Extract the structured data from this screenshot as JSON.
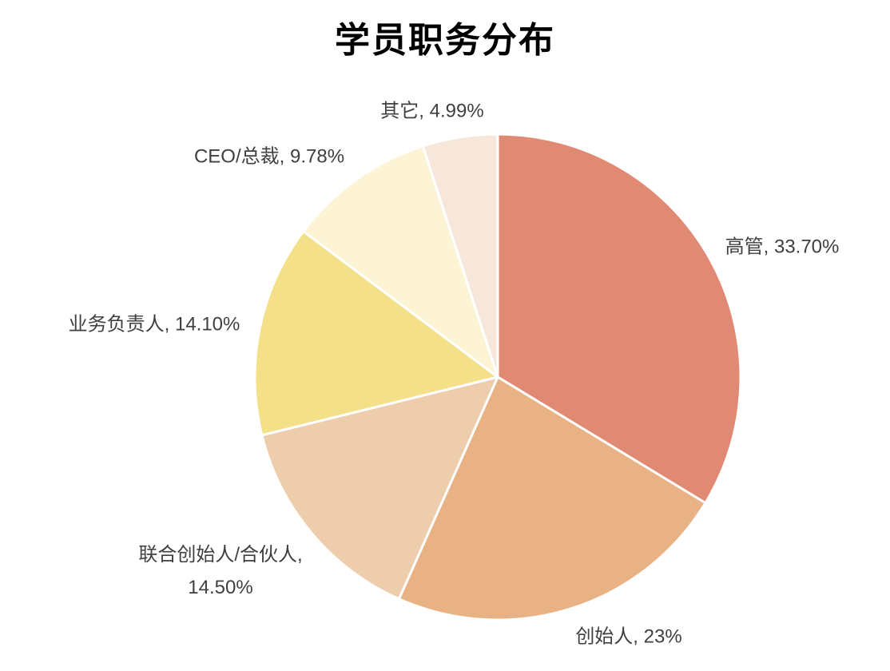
{
  "page": {
    "title": "学员职务分布"
  },
  "chart_data": {
    "type": "pie",
    "title": "学员职务分布",
    "categories": [
      "高管",
      "创始人",
      "联合创始人/合伙人",
      "业务负责人",
      "CEO/总裁",
      "其它"
    ],
    "values": [
      33.7,
      23,
      14.5,
      14.1,
      9.78,
      4.99
    ],
    "unit": "%",
    "point_labels": [
      "高管, 33.70%",
      "创始人, 23%",
      "联合创始人/合伙人, 14.50%",
      "业务负责人, 14.10%",
      "CEO/总裁, 9.78%",
      "其它, 4.99%"
    ],
    "colors": [
      "#E08973",
      "#E8B285",
      "#EECDAC",
      "#F5E08A",
      "#FCF4D4",
      "#F7E7DB"
    ],
    "slice_border_color": "#FFFFFF",
    "start_angle_deg": 0,
    "direction": "clockwise",
    "label_position": "outside",
    "legend": "none",
    "label_text_color": "#404040",
    "title_color": "#000000",
    "background_color": "#FFFFFF"
  }
}
